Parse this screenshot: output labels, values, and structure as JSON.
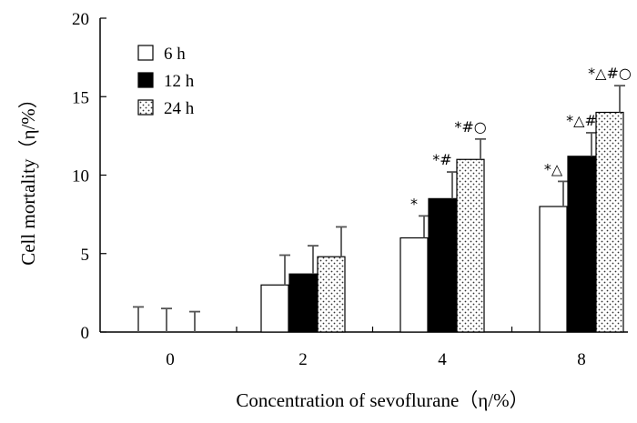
{
  "chart_data": {
    "type": "bar",
    "title": "",
    "xlabel": "Concentration of sevoflurane（η/%）",
    "ylabel": "Cell mortality（η/%）",
    "categories": [
      "0",
      "2",
      "4",
      "8"
    ],
    "ylim": [
      0,
      20
    ],
    "yticks": [
      "0",
      "5",
      "10",
      "15",
      "20"
    ],
    "grid": false,
    "legend_position": "top-left",
    "series": [
      {
        "name": "6  h",
        "fill": "white",
        "values": [
          0,
          3.0,
          6.0,
          8.0
        ],
        "errors": [
          1.6,
          1.9,
          1.4,
          1.6
        ]
      },
      {
        "name": "12  h",
        "fill": "black",
        "values": [
          0,
          3.7,
          8.5,
          11.2
        ],
        "errors": [
          1.5,
          1.8,
          1.7,
          1.5
        ]
      },
      {
        "name": "24  h",
        "fill": "dotted",
        "values": [
          0,
          4.8,
          11.0,
          14.0
        ],
        "errors": [
          1.3,
          1.9,
          1.3,
          1.7
        ]
      }
    ],
    "annotations": [
      [
        "",
        "",
        "",
        ""
      ],
      [
        "",
        "",
        "",
        ""
      ],
      [
        "*",
        "*#",
        "*#○",
        ""
      ]
    ]
  },
  "annotations_by_category": {
    "c4": [
      "*",
      "*#",
      "*#○"
    ],
    "c8": [
      "*△",
      "*△#",
      "*△#○"
    ]
  }
}
